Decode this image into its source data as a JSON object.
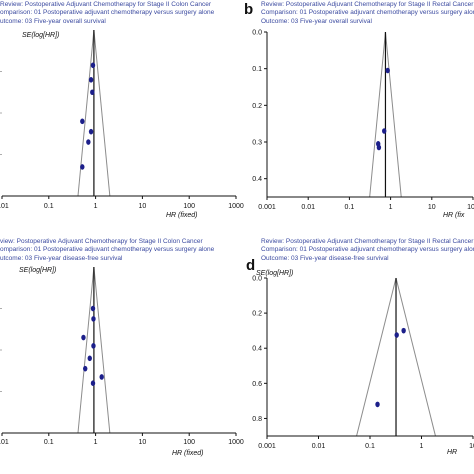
{
  "panels": [
    {
      "letter": "",
      "header": [
        "Review:   Postoperative Adjuvant Chemotherapy for Stage II Colon Cancer",
        "omparison: 01 Postoperative adjuvant chemotherapy versus surgery alone",
        "utcome: 03 Five-year overall survival"
      ],
      "se_label": "SE(log[HR])",
      "x_axis_label": "HR (fixed)"
    },
    {
      "letter": "b",
      "header": [
        "Review:   Postoperative Adjuvant Chemotherapy for Stage II Rectal Cancer",
        "Comparison: 01 Postoperative adjuvant chemotherapy versus surgery alone",
        "Outcome: 03 Five-year overall survival"
      ],
      "se_label": "",
      "x_axis_label": "HR (fix"
    },
    {
      "letter": "",
      "header": [
        "view:    Postoperative Adjuvant Chemotherapy for Stage II Colon Cancer",
        "omparison: 01 Postoperative adjuvant chemotherapy versus surgery alone",
        "utcome: 03 Five-year disease-free survival"
      ],
      "se_label": "SE(log[HR])",
      "x_axis_label": "HR (fixed)"
    },
    {
      "letter": "d",
      "header": [
        "Review:   Postoperative Adjuvant Chemotherapy for Stage II Rectal Cancer",
        "Comparison: 01 Postoperative adjuvant chemotherapy versus surgery alone",
        "Outcome: 03 Five-year disease-free survival"
      ],
      "se_label": "SE(log[HR])",
      "x_axis_label": "HR"
    }
  ],
  "chart_data": [
    {
      "type": "scatter",
      "subtype": "funnel",
      "title": "Postoperative Adjuvant Chemotherapy for Stage II Colon Cancer — Five-year overall survival",
      "xlabel": "HR (fixed)",
      "ylabel": "SE(log[HR])",
      "xscale": "log",
      "xticks": [
        "0.01",
        "0.1",
        "1",
        "10",
        "100",
        "1000"
      ],
      "yticks": [],
      "ylim": [
        0,
        0.4
      ],
      "y_inverted": true,
      "pooled_hr": 0.92,
      "points": [
        {
          "x": 0.88,
          "y": 0.085
        },
        {
          "x": 0.8,
          "y": 0.12
        },
        {
          "x": 0.85,
          "y": 0.15
        },
        {
          "x": 0.52,
          "y": 0.22
        },
        {
          "x": 0.8,
          "y": 0.245
        },
        {
          "x": 0.7,
          "y": 0.27
        },
        {
          "x": 0.52,
          "y": 0.33
        }
      ]
    },
    {
      "type": "scatter",
      "subtype": "funnel",
      "title": "Postoperative Adjuvant Chemotherapy for Stage II Rectal Cancer — Five-year overall survival",
      "xlabel": "HR (fix",
      "ylabel": "",
      "xscale": "log",
      "xticks": [
        "0.001",
        "0.01",
        "0.1",
        "1",
        "10",
        "100"
      ],
      "yticks": [
        "0.0",
        "0.1",
        "0.2",
        "0.3",
        "0.4"
      ],
      "ylim": [
        0,
        0.45
      ],
      "y_inverted": true,
      "pooled_hr": 0.75,
      "points": [
        {
          "x": 0.85,
          "y": 0.105
        },
        {
          "x": 0.7,
          "y": 0.27
        },
        {
          "x": 0.5,
          "y": 0.305
        },
        {
          "x": 0.52,
          "y": 0.315
        }
      ]
    },
    {
      "type": "scatter",
      "subtype": "funnel",
      "title": "Postoperative Adjuvant Chemotherapy for Stage II Colon Cancer — Five-year disease-free survival",
      "xlabel": "HR (fixed)",
      "ylabel": "SE(log[HR])",
      "xscale": "log",
      "xticks": [
        "0.01",
        "0.1",
        "1",
        "10",
        "100",
        "1000"
      ],
      "yticks": [],
      "ylim": [
        0,
        0.4
      ],
      "y_inverted": true,
      "pooled_hr": 0.92,
      "points": [
        {
          "x": 0.88,
          "y": 0.1
        },
        {
          "x": 0.9,
          "y": 0.125
        },
        {
          "x": 0.55,
          "y": 0.17
        },
        {
          "x": 0.9,
          "y": 0.19
        },
        {
          "x": 0.75,
          "y": 0.22
        },
        {
          "x": 0.6,
          "y": 0.245
        },
        {
          "x": 1.35,
          "y": 0.265
        },
        {
          "x": 0.88,
          "y": 0.28
        }
      ]
    },
    {
      "type": "scatter",
      "subtype": "funnel",
      "title": "Postoperative Adjuvant Chemotherapy for Stage II Rectal Cancer — Five-year disease-free survival",
      "xlabel": "HR",
      "ylabel": "SE(log[HR])",
      "xscale": "log",
      "xticks": [
        "0.001",
        "0.01",
        "0.1",
        "1",
        "10"
      ],
      "yticks": [
        "0.0",
        "0.2",
        "0.4",
        "0.6",
        "0.8"
      ],
      "ylim": [
        0,
        0.9
      ],
      "y_inverted": true,
      "pooled_hr": 0.32,
      "points": [
        {
          "x": 0.45,
          "y": 0.3
        },
        {
          "x": 0.33,
          "y": 0.325
        },
        {
          "x": 0.14,
          "y": 0.72
        }
      ]
    }
  ],
  "colors": {
    "point": "#1c1f8a",
    "funnel": "#8c8c8c",
    "axis": "#111111",
    "header_text": "#3b4aa0"
  }
}
